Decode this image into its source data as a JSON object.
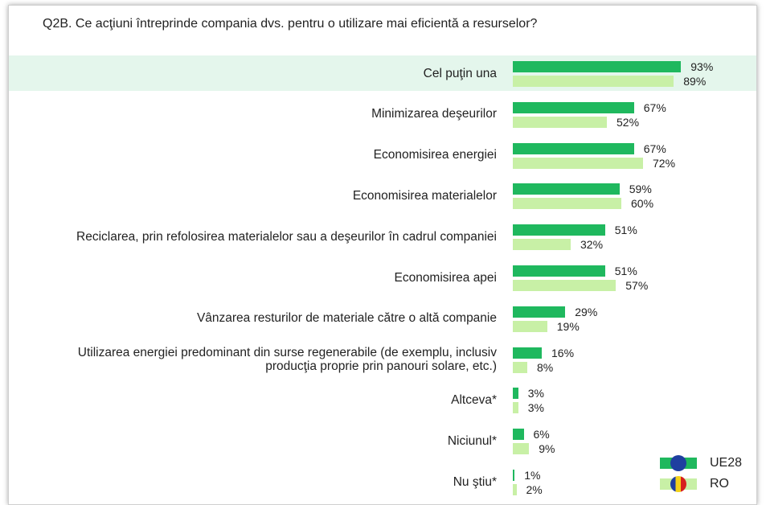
{
  "chart_data": {
    "type": "bar",
    "orientation": "horizontal",
    "title": "Q2B. Ce acţiuni întreprinde compania dvs. pentru o utilizare mai eficientă a resurselor?",
    "categories": [
      "Cel puţin una",
      "Minimizarea deşeurilor",
      "Economisirea energiei",
      "Economisirea materialelor",
      "Reciclarea, prin refolosirea materialelor sau a deşeurilor în cadrul companiei",
      "Economisirea apei",
      "Vânzarea resturilor de materiale către o altă companie",
      "Utilizarea energiei predominant din surse regenerabile (de exemplu, inclusiv producţia proprie prin panouri solare, etc.)",
      "Altceva*",
      "Niciunul*",
      "Nu ştiu*"
    ],
    "series": [
      {
        "name": "UE28",
        "color": "#1fb85e",
        "values": [
          93,
          67,
          67,
          59,
          51,
          51,
          29,
          16,
          3,
          6,
          1
        ],
        "value_labels": [
          "93%",
          "67%",
          "67%",
          "59%",
          "51%",
          "51%",
          "29%",
          "16%",
          "3%",
          "6%",
          "1%"
        ]
      },
      {
        "name": "RO",
        "color": "#c8f0a6",
        "values": [
          89,
          52,
          72,
          60,
          32,
          57,
          19,
          8,
          3,
          9,
          2
        ],
        "value_labels": [
          "89%",
          "52%",
          "72%",
          "60%",
          "32%",
          "57%",
          "19%",
          "8%",
          "3%",
          "9%",
          "2%"
        ]
      }
    ],
    "legend": "bottom-right"
  }
}
